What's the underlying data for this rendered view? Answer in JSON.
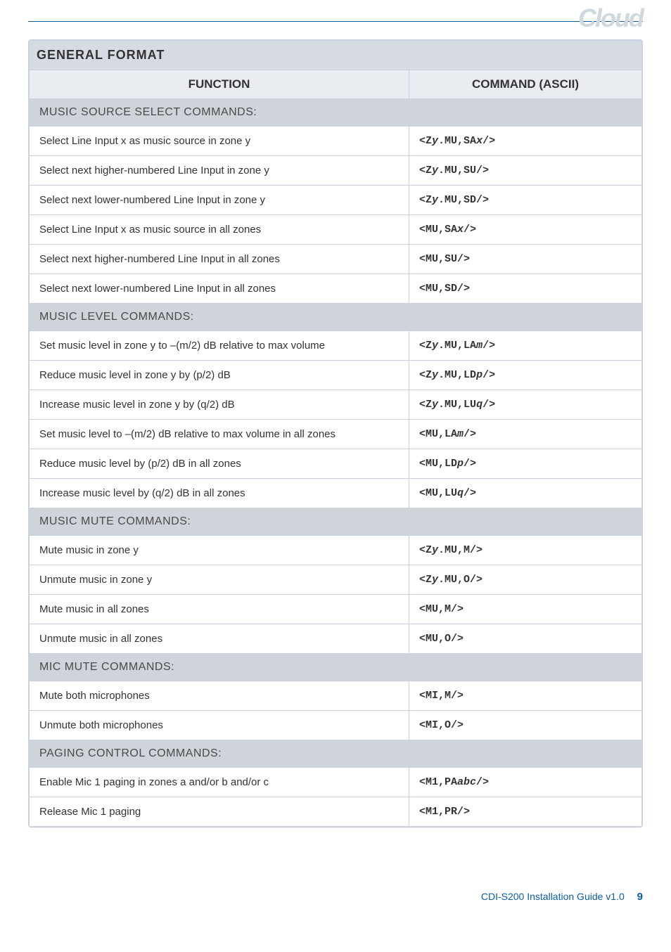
{
  "logo": "Cloud",
  "table": {
    "title": "GENERAL FORMAT",
    "cols": {
      "function": "FUNCTION",
      "command": "COMMAND (ASCII)"
    },
    "sections": [
      {
        "heading": "MUSIC SOURCE SELECT COMMANDS:",
        "rows": [
          {
            "func": "Select Line Input x as music source in zone y",
            "cmd": "<Z",
            "var1": "y",
            "cmd2": ".MU,SA",
            "var2": "x",
            "cmd3": "/>"
          },
          {
            "func": "Select next higher-numbered Line Input in zone y",
            "cmd": "<Z",
            "var1": "y",
            "cmd2": ".MU,SU/>",
            "var2": "",
            "cmd3": ""
          },
          {
            "func": "Select next lower-numbered Line Input in zone y",
            "cmd": "<Z",
            "var1": "y",
            "cmd2": ".MU,SD/>",
            "var2": "",
            "cmd3": ""
          },
          {
            "func": "Select Line Input x as music source in all zones",
            "cmd": "<MU,SA",
            "var1": "x",
            "cmd2": "/>",
            "var2": "",
            "cmd3": ""
          },
          {
            "func": "Select next higher-numbered Line Input in all zones",
            "cmd": "<MU,SU/>",
            "var1": "",
            "cmd2": "",
            "var2": "",
            "cmd3": ""
          },
          {
            "func": "Select next lower-numbered Line Input in all zones",
            "cmd": "<MU,SD/>",
            "var1": "",
            "cmd2": "",
            "var2": "",
            "cmd3": ""
          }
        ]
      },
      {
        "heading": "MUSIC LEVEL COMMANDS:",
        "rows": [
          {
            "func": "Set music level in zone y to –(m/2) dB relative to max volume",
            "cmd": "<Z",
            "var1": "y",
            "cmd2": ".MU,LA",
            "var2": "m",
            "cmd3": "/>"
          },
          {
            "func": "Reduce music level in zone y by (p/2) dB",
            "cmd": "<Z",
            "var1": "y",
            "cmd2": ".MU,LD",
            "var2": "p",
            "cmd3": "/>"
          },
          {
            "func": "Increase music level in zone y by (q/2) dB",
            "cmd": "<Z",
            "var1": "y",
            "cmd2": ".MU,LU",
            "var2": "q",
            "cmd3": "/>"
          },
          {
            "func": "Set music level to –(m/2) dB relative to max volume in all zones",
            "cmd": "<MU,LA",
            "var1": "m",
            "cmd2": "/>",
            "var2": "",
            "cmd3": ""
          },
          {
            "func": "Reduce music level by (p/2) dB in all zones",
            "cmd": "<MU,LD",
            "var1": "p",
            "cmd2": "/>",
            "var2": "",
            "cmd3": ""
          },
          {
            "func": "Increase music level by (q/2) dB in all zones",
            "cmd": "<MU,LU",
            "var1": "q",
            "cmd2": "/>",
            "var2": "",
            "cmd3": ""
          }
        ]
      },
      {
        "heading": "MUSIC MUTE COMMANDS:",
        "rows": [
          {
            "func": "Mute music in zone y",
            "cmd": "<Z",
            "var1": "y",
            "cmd2": ".MU,M/>",
            "var2": "",
            "cmd3": ""
          },
          {
            "func": "Unmute music in zone y",
            "cmd": "<Z",
            "var1": "y",
            "cmd2": ".MU,O/>",
            "var2": "",
            "cmd3": ""
          },
          {
            "func": "Mute music in all zones",
            "cmd": "<MU,M/>",
            "var1": "",
            "cmd2": "",
            "var2": "",
            "cmd3": ""
          },
          {
            "func": "Unmute music in all zones",
            "cmd": "<MU,O/>",
            "var1": "",
            "cmd2": "",
            "var2": "",
            "cmd3": ""
          }
        ]
      },
      {
        "heading": "MIC MUTE COMMANDS:",
        "rows": [
          {
            "func": "Mute both microphones",
            "cmd": "<MI,M/>",
            "var1": "",
            "cmd2": "",
            "var2": "",
            "cmd3": ""
          },
          {
            "func": "Unmute both microphones",
            "cmd": "<MI,O/>",
            "var1": "",
            "cmd2": "",
            "var2": "",
            "cmd3": ""
          }
        ]
      },
      {
        "heading": "PAGING CONTROL COMMANDS:",
        "rows": [
          {
            "func": "Enable Mic 1 paging in zones a and/or b and/or c",
            "cmd": "<M1,PA",
            "var1": "abc",
            "cmd2": "/>",
            "var2": "",
            "cmd3": ""
          },
          {
            "func": "Release Mic 1 paging",
            "cmd": "<M1,PR/>",
            "var1": "",
            "cmd2": "",
            "var2": "",
            "cmd3": ""
          }
        ]
      }
    ]
  },
  "footer": {
    "text": "CDI-S200 Installation Guide v1.0",
    "page": "9"
  }
}
